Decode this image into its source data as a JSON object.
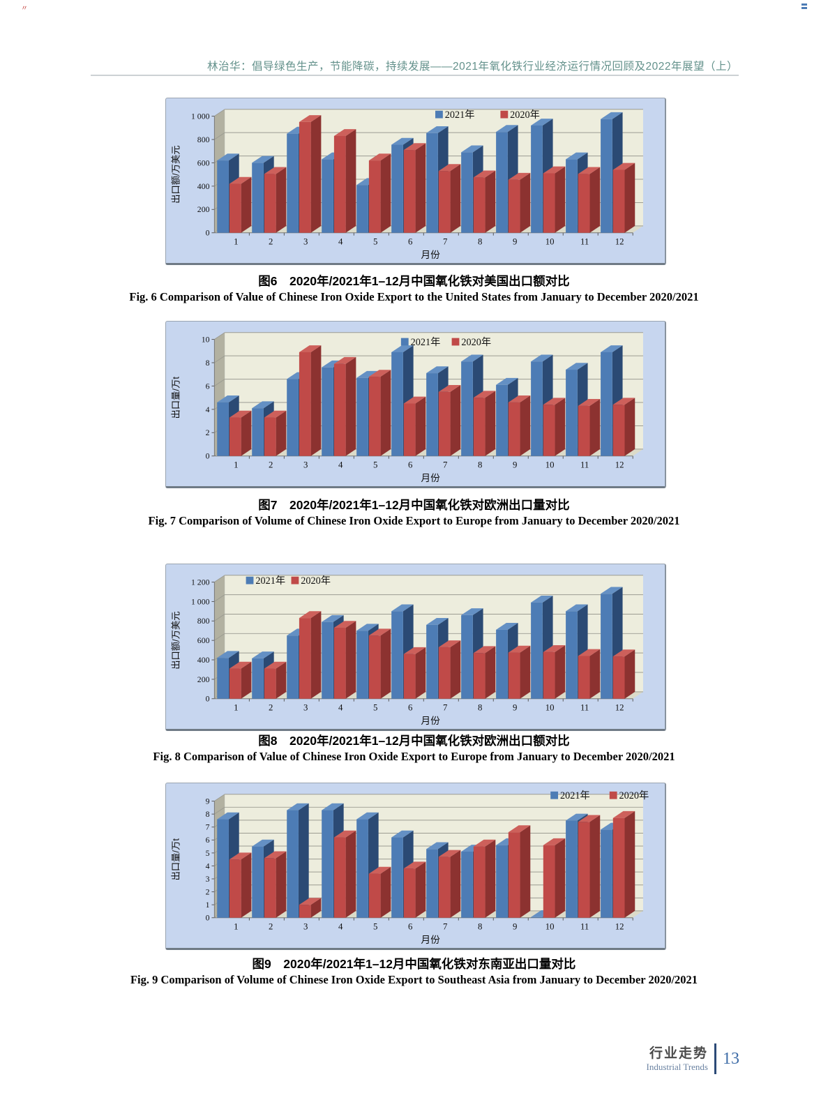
{
  "page": {
    "header": {
      "title": "林治华：倡导绿色生产，节能降碳，持续发展——2021年氧化铁行业经济运行情况回顾及2022年展望（上）"
    },
    "footer": {
      "section_cn": "行业走势",
      "section_en": "Industrial Trends",
      "page_number": "13"
    },
    "scan_artifact_left": "〃",
    "scan_artifact_right": "〓"
  },
  "colors": {
    "box_bg": "#c7d6ef",
    "wall": "#ededdd",
    "side_wall": "#b2b1a1",
    "floor": "#dcdbc9",
    "grid": "#9c9c92",
    "s2021": {
      "face": "#4d7cb5",
      "side": "#2b4a74",
      "top": "#6490c4"
    },
    "s2020": {
      "face": "#c04a48",
      "side": "#8c3230",
      "top": "#cd605b"
    }
  },
  "chart_data": [
    {
      "type": "bar",
      "title_cn": "图6　2020年/2021年1–12月中国氧化铁对美国出口额对比",
      "title_en": "Fig. 6   Comparison of Value of Chinese Iron Oxide Export to the United States from January to December 2020/2021",
      "xlabel": "月份",
      "ylabel": "出口额/万美元",
      "ylim": [
        0,
        1000
      ],
      "yticks": [
        [
          0,
          "0"
        ],
        [
          200,
          "200"
        ],
        [
          400,
          "400"
        ],
        [
          600,
          "600"
        ],
        [
          800,
          "800"
        ],
        [
          1000,
          "1 000"
        ]
      ],
      "categories": [
        "1",
        "2",
        "3",
        "4",
        "5",
        "6",
        "7",
        "8",
        "9",
        "10",
        "11",
        "12"
      ],
      "grid": true,
      "legend_pos": "top-center-right",
      "legend_xy": {
        "x": [
          388,
          483
        ],
        "y": 18
      },
      "series": [
        {
          "name": "2021年",
          "color": "s2021",
          "values": [
            620,
            600,
            850,
            630,
            410,
            755,
            855,
            690,
            865,
            920,
            630,
            975
          ]
        },
        {
          "name": "2020年",
          "color": "s2020",
          "values": [
            420,
            505,
            950,
            830,
            620,
            710,
            530,
            475,
            455,
            510,
            505,
            540
          ]
        }
      ]
    },
    {
      "type": "bar",
      "title_cn": "图7　2020年/2021年1–12月中国氧化铁对欧洲出口量对比",
      "title_en": "Fig. 7   Comparison of Volume of Chinese Iron Oxide Export to Europe from January to December 2020/2021",
      "xlabel": "月份",
      "ylabel": "出口量/万t",
      "ylim": [
        0,
        10
      ],
      "yticks": [
        [
          0,
          "0"
        ],
        [
          2,
          "2"
        ],
        [
          4,
          "4"
        ],
        [
          6,
          "6"
        ],
        [
          8,
          "8"
        ],
        [
          10,
          "10"
        ]
      ],
      "categories": [
        "1",
        "2",
        "3",
        "4",
        "5",
        "6",
        "7",
        "8",
        "9",
        "10",
        "11",
        "12"
      ],
      "grid": true,
      "legend_pos": "top-center-right",
      "legend_xy": {
        "x": [
          338,
          412
        ],
        "y": 24
      },
      "series": [
        {
          "name": "2021年",
          "color": "s2021",
          "values": [
            4.6,
            4.1,
            6.6,
            7.6,
            6.7,
            8.9,
            7.1,
            8.1,
            6.1,
            8.1,
            7.4,
            8.9
          ]
        },
        {
          "name": "2020年",
          "color": "s2020",
          "values": [
            3.3,
            3.3,
            8.9,
            7.9,
            6.8,
            4.5,
            5.5,
            5.0,
            4.6,
            4.4,
            4.3,
            4.4
          ]
        }
      ]
    },
    {
      "type": "bar",
      "title_cn": "图8　2020年/2021年1–12月中国氧化铁对欧洲出口额对比",
      "title_en": "Fig. 8   Comparison of Value of Chinese Iron Oxide Export to Europe from January to December 2020/2021",
      "xlabel": "月份",
      "ylabel": "出口额/万美元",
      "ylim": [
        0,
        1200
      ],
      "yticks": [
        [
          0,
          "0"
        ],
        [
          200,
          "200"
        ],
        [
          400,
          "400"
        ],
        [
          600,
          "600"
        ],
        [
          800,
          "800"
        ],
        [
          1000,
          "1 000"
        ],
        [
          1200,
          "1 200"
        ]
      ],
      "categories": [
        "1",
        "2",
        "3",
        "4",
        "5",
        "6",
        "7",
        "8",
        "9",
        "10",
        "11",
        "12"
      ],
      "grid": true,
      "legend_pos": "top-left",
      "legend_xy": {
        "x": [
          112,
          178
        ],
        "y": 18
      },
      "series": [
        {
          "name": "2021年",
          "color": "s2021",
          "values": [
            420,
            415,
            650,
            790,
            700,
            900,
            760,
            860,
            710,
            990,
            900,
            1080
          ]
        },
        {
          "name": "2020年",
          "color": "s2020",
          "values": [
            310,
            310,
            830,
            730,
            650,
            460,
            530,
            470,
            475,
            480,
            440,
            435
          ]
        }
      ]
    },
    {
      "type": "bar",
      "title_cn": "图9　2020年/2021年1–12月中国氧化铁对东南亚出口量对比",
      "title_en": "Fig. 9   Comparison of Volume of Chinese Iron Oxide Export to Southeast Asia from January to December 2020/2021",
      "xlabel": "月份",
      "ylabel": "出口量/万t",
      "ylim": [
        0,
        9
      ],
      "yticks": [
        [
          0,
          "0"
        ],
        [
          1,
          "1"
        ],
        [
          2,
          "2"
        ],
        [
          3,
          "3"
        ],
        [
          4,
          "4"
        ],
        [
          5,
          "5"
        ],
        [
          6,
          "6"
        ],
        [
          7,
          "7"
        ],
        [
          8,
          "8"
        ],
        [
          9,
          "9"
        ]
      ],
      "categories": [
        "1",
        "2",
        "3",
        "4",
        "5",
        "6",
        "7",
        "8",
        "9",
        "10",
        "11",
        "12"
      ],
      "grid": true,
      "legend_pos": "top-right",
      "legend_xy": {
        "x": [
          556,
          642
        ],
        "y": 12
      },
      "series": [
        {
          "name": "2021年",
          "color": "s2021",
          "values": [
            7.6,
            5.5,
            8.3,
            8.3,
            7.6,
            6.2,
            5.3,
            5.1,
            5.6,
            0.05,
            7.5,
            6.8
          ]
        },
        {
          "name": "2020年",
          "color": "s2020",
          "values": [
            4.5,
            4.6,
            1.0,
            6.2,
            3.4,
            3.8,
            4.7,
            5.5,
            6.6,
            5.6,
            7.4,
            7.7
          ]
        }
      ]
    }
  ]
}
